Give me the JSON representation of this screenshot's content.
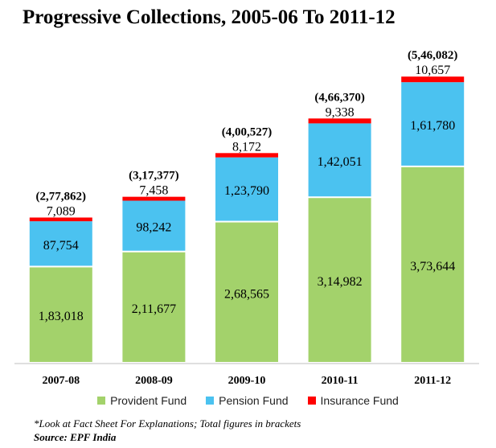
{
  "chart_data": {
    "type": "bar",
    "stacked": true,
    "title": "Progressive Collections, 2005-06 To 2011-12",
    "categories": [
      "2007-08",
      "2008-09",
      "2009-10",
      "2010-11",
      "2011-12"
    ],
    "series": [
      {
        "name": "Provident Fund",
        "color": "#a3d26b",
        "values": [
          183018,
          211677,
          268565,
          314982,
          373644
        ],
        "labels": [
          "1,83,018",
          "2,11,677",
          "2,68,565",
          "3,14,982",
          "3,73,644"
        ]
      },
      {
        "name": "Pension Fund",
        "color": "#4bc2f0",
        "values": [
          87754,
          98242,
          123790,
          142051,
          161780
        ],
        "labels": [
          "87,754",
          "98,242",
          "1,23,790",
          "1,42,051",
          "1,61,780"
        ]
      },
      {
        "name": "Insurance Fund",
        "color": "#ff0000",
        "values": [
          7089,
          7458,
          8172,
          9338,
          10657
        ],
        "labels": [
          "7,089",
          "7,458",
          "8,172",
          "9,338",
          "10,657"
        ]
      }
    ],
    "totals": [
      "(2,77,862)",
      "(3,17,377)",
      "(4,00,527)",
      "(4,66,370)",
      "(5,46,082)"
    ],
    "ylim": [
      0,
      600000
    ],
    "grid": false,
    "legend_position": "bottom"
  },
  "footnote": "*Look at Fact Sheet For Explanations; Total figures in brackets",
  "source": "Source: EPF India"
}
